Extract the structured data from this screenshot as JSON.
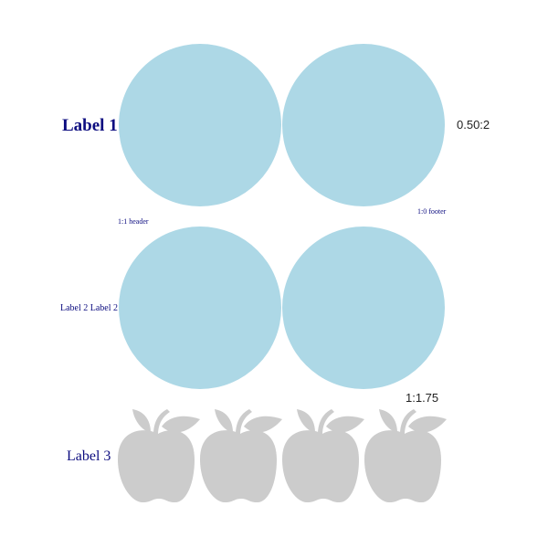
{
  "rows": [
    {
      "label": "Label 1",
      "ratio": "0.50:2",
      "footer": "1:0 footer",
      "shape": "circle",
      "count": 2
    },
    {
      "label": "Label 2 Label 2",
      "ratio": "1:1.75",
      "header": "1:1 header",
      "shape": "circle",
      "count": 2
    },
    {
      "label": "Label 3",
      "shape": "apple-icon",
      "count": 4
    }
  ],
  "colors": {
    "circle_fill": "#add8e6",
    "apple_fill": "#cccccc",
    "label_text": "#0d0d80",
    "ratio_text": "#222222"
  }
}
